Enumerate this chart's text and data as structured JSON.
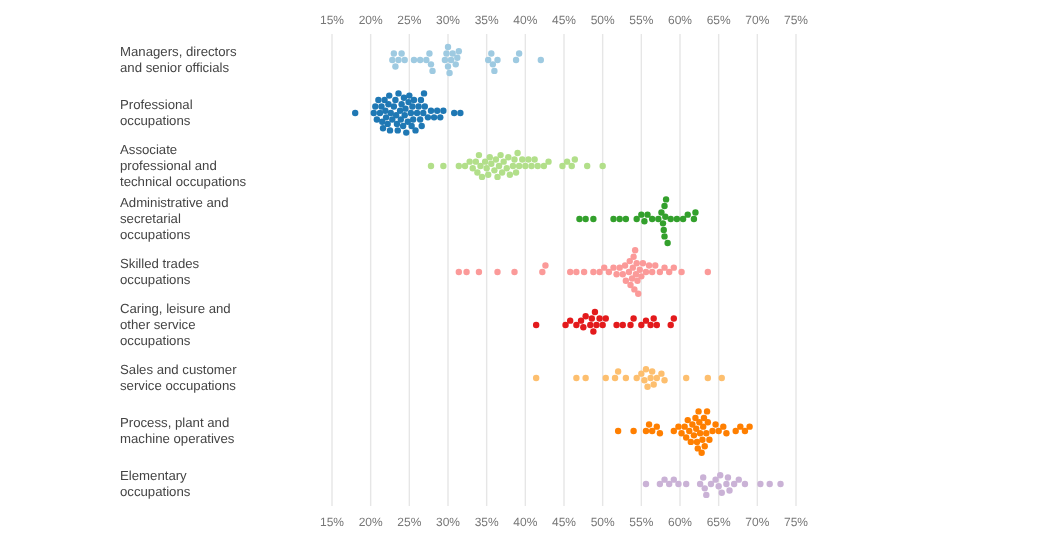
{
  "chart_data": {
    "type": "scatter",
    "orientation": "horizontal",
    "grid": "x",
    "marker": "circle",
    "categories": [
      "Managers, directors and senior officials",
      "Professional occupations",
      "Associate professional and technical occupations",
      "Administrative and secretarial occupations",
      "Skilled trades occupations",
      "Caring, leisure and other service occupations",
      "Sales and customer service occupations",
      "Process, plant and machine operatives",
      "Elementary occupations"
    ],
    "xlim": [
      15,
      75
    ],
    "xticks": [
      {
        "value": 15,
        "label": "15%"
      },
      {
        "value": 20,
        "label": "20%"
      },
      {
        "value": 25,
        "label": "25%"
      },
      {
        "value": 30,
        "label": "30%"
      },
      {
        "value": 35,
        "label": "35%"
      },
      {
        "value": 40,
        "label": "40%"
      },
      {
        "value": 45,
        "label": "45%"
      },
      {
        "value": 50,
        "label": "50%"
      },
      {
        "value": 55,
        "label": "55%"
      },
      {
        "value": 60,
        "label": "60%"
      },
      {
        "value": 65,
        "label": "65%"
      },
      {
        "value": 70,
        "label": "70%"
      },
      {
        "value": 75,
        "label": "75%"
      }
    ],
    "x2lim": [
      15,
      75
    ],
    "x2ticks": [
      {
        "value": 15,
        "label": "15%"
      },
      {
        "value": 20,
        "label": "20%"
      },
      {
        "value": 25,
        "label": "25%"
      },
      {
        "value": 30,
        "label": "30%"
      },
      {
        "value": 35,
        "label": "35%"
      },
      {
        "value": 40,
        "label": "40%"
      },
      {
        "value": 45,
        "label": "45%"
      },
      {
        "value": 50,
        "label": "50%"
      },
      {
        "value": 55,
        "label": "55%"
      },
      {
        "value": 60,
        "label": "60%"
      },
      {
        "value": 65,
        "label": "65%"
      },
      {
        "value": 70,
        "label": "70%"
      },
      {
        "value": 75,
        "label": "75%"
      }
    ],
    "series": [
      {
        "color": "#9ecae1",
        "values": [
          22.8,
          23.2,
          23.6,
          24.0,
          24.4,
          25.6,
          26.4,
          27.2,
          27.6,
          28.0,
          29.6,
          30.0,
          30.2,
          30.4,
          30.6,
          31.0,
          31.4,
          35.2,
          35.6,
          36.0,
          36.4,
          38.8,
          39.2,
          42.0,
          30.0,
          29.8,
          27.8,
          23.0,
          35.8,
          31.2
        ],
        "x": [
          "Managers, directors and senior officials",
          "Managers, directors and senior officials",
          "Managers, directors and senior officials",
          "Managers, directors and senior officials",
          "Managers, directors and senior officials",
          "Managers, directors and senior officials",
          "Managers, directors and senior officials",
          "Managers, directors and senior officials",
          "Managers, directors and senior officials",
          "Managers, directors and senior officials",
          "Managers, directors and senior officials",
          "Managers, directors and senior officials",
          "Managers, directors and senior officials",
          "Managers, directors and senior officials",
          "Managers, directors and senior officials",
          "Managers, directors and senior officials",
          "Managers, directors and senior officials",
          "Managers, directors and senior officials",
          "Managers, directors and senior officials",
          "Managers, directors and senior officials",
          "Managers, directors and senior officials",
          "Managers, directors and senior officials",
          "Managers, directors and senior officials",
          "Managers, directors and senior officials",
          "Managers, directors and senior officials",
          "Managers, directors and senior officials",
          "Managers, directors and senior officials",
          "Managers, directors and senior officials",
          "Managers, directors and senior officials",
          "Managers, directors and senior officials"
        ]
      },
      {
        "color": "#1f78b4",
        "values": [
          18.0,
          20.4,
          20.6,
          20.8,
          21.0,
          21.2,
          21.4,
          21.6,
          21.8,
          22.0,
          22.2,
          22.4,
          22.6,
          22.8,
          23.0,
          23.2,
          23.4,
          23.6,
          23.8,
          24.0,
          24.2,
          24.4,
          24.6,
          24.8,
          25.0,
          25.2,
          25.4,
          25.6,
          25.8,
          26.0,
          26.2,
          26.4,
          26.6,
          26.8,
          27.0,
          27.4,
          27.8,
          28.2,
          28.6,
          29.0,
          29.4,
          30.8,
          31.6,
          21.5,
          22.5,
          23.5,
          24.5,
          25.5,
          26.5,
          22.3,
          23.3,
          24.3,
          25.3,
          23.9,
          24.9,
          21.9,
          26.9
        ],
        "x": [
          "Professional occupations",
          "Professional occupations",
          "Professional occupations",
          "Professional occupations",
          "Professional occupations",
          "Professional occupations",
          "Professional occupations",
          "Professional occupations",
          "Professional occupations",
          "Professional occupations",
          "Professional occupations",
          "Professional occupations",
          "Professional occupations",
          "Professional occupations",
          "Professional occupations",
          "Professional occupations",
          "Professional occupations",
          "Professional occupations",
          "Professional occupations",
          "Professional occupations",
          "Professional occupations",
          "Professional occupations",
          "Professional occupations",
          "Professional occupations",
          "Professional occupations",
          "Professional occupations",
          "Professional occupations",
          "Professional occupations",
          "Professional occupations",
          "Professional occupations",
          "Professional occupations",
          "Professional occupations",
          "Professional occupations",
          "Professional occupations",
          "Professional occupations",
          "Professional occupations",
          "Professional occupations",
          "Professional occupations",
          "Professional occupations",
          "Professional occupations",
          "Professional occupations",
          "Professional occupations",
          "Professional occupations",
          "Professional occupations",
          "Professional occupations",
          "Professional occupations",
          "Professional occupations",
          "Professional occupations",
          "Professional occupations",
          "Professional occupations",
          "Professional occupations",
          "Professional occupations",
          "Professional occupations",
          "Professional occupations",
          "Professional occupations",
          "Professional occupations",
          "Professional occupations"
        ]
      },
      {
        "color": "#b2df8a",
        "values": [
          27.8,
          29.4,
          31.4,
          32.2,
          32.8,
          33.2,
          33.6,
          34.0,
          34.4,
          34.8,
          35.2,
          35.6,
          36.0,
          36.4,
          36.8,
          37.2,
          37.6,
          38.0,
          38.4,
          38.8,
          39.2,
          39.6,
          40.0,
          40.4,
          40.8,
          41.2,
          41.6,
          42.4,
          43.0,
          44.8,
          45.4,
          46.0,
          46.4,
          48.0,
          50.0,
          34.2,
          35.4,
          36.2,
          37.0,
          37.8,
          38.6,
          35.0,
          36.6,
          39.0,
          33.8
        ],
        "x": [
          "Associate professional and technical occupations",
          "Associate professional and technical occupations",
          "Associate professional and technical occupations",
          "Associate professional and technical occupations",
          "Associate professional and technical occupations",
          "Associate professional and technical occupations",
          "Associate professional and technical occupations",
          "Associate professional and technical occupations",
          "Associate professional and technical occupations",
          "Associate professional and technical occupations",
          "Associate professional and technical occupations",
          "Associate professional and technical occupations",
          "Associate professional and technical occupations",
          "Associate professional and technical occupations",
          "Associate professional and technical occupations",
          "Associate professional and technical occupations",
          "Associate professional and technical occupations",
          "Associate professional and technical occupations",
          "Associate professional and technical occupations",
          "Associate professional and technical occupations",
          "Associate professional and technical occupations",
          "Associate professional and technical occupations",
          "Associate professional and technical occupations",
          "Associate professional and technical occupations",
          "Associate professional and technical occupations",
          "Associate professional and technical occupations",
          "Associate professional and technical occupations",
          "Associate professional and technical occupations",
          "Associate professional and technical occupations",
          "Associate professional and technical occupations",
          "Associate professional and technical occupations",
          "Associate professional and technical occupations",
          "Associate professional and technical occupations",
          "Associate professional and technical occupations",
          "Associate professional and technical occupations",
          "Associate professional and technical occupations",
          "Associate professional and technical occupations",
          "Associate professional and technical occupations",
          "Associate professional and technical occupations",
          "Associate professional and technical occupations",
          "Associate professional and technical occupations",
          "Associate professional and technical occupations",
          "Associate professional and technical occupations",
          "Associate professional and technical occupations",
          "Associate professional and technical occupations"
        ]
      },
      {
        "color": "#33a02c",
        "values": [
          47.0,
          47.8,
          48.8,
          51.4,
          52.2,
          53.0,
          54.4,
          55.0,
          55.8,
          56.4,
          57.2,
          57.6,
          57.8,
          58.0,
          58.0,
          58.2,
          58.4,
          58.8,
          59.6,
          60.4,
          61.0,
          61.8,
          62.0,
          58.1,
          57.9,
          55.4
        ],
        "x": [
          "Administrative and secretarial occupations",
          "Administrative and secretarial occupations",
          "Administrative and secretarial occupations",
          "Administrative and secretarial occupations",
          "Administrative and secretarial occupations",
          "Administrative and secretarial occupations",
          "Administrative and secretarial occupations",
          "Administrative and secretarial occupations",
          "Administrative and secretarial occupations",
          "Administrative and secretarial occupations",
          "Administrative and secretarial occupations",
          "Administrative and secretarial occupations",
          "Administrative and secretarial occupations",
          "Administrative and secretarial occupations",
          "Administrative and secretarial occupations",
          "Administrative and secretarial occupations",
          "Administrative and secretarial occupations",
          "Administrative and secretarial occupations",
          "Administrative and secretarial occupations",
          "Administrative and secretarial occupations",
          "Administrative and secretarial occupations",
          "Administrative and secretarial occupations",
          "Administrative and secretarial occupations",
          "Administrative and secretarial occupations",
          "Administrative and secretarial occupations",
          "Administrative and secretarial occupations"
        ]
      },
      {
        "color": "#fb9a99",
        "values": [
          31.4,
          32.4,
          34.0,
          36.4,
          38.6,
          42.2,
          42.6,
          45.8,
          46.6,
          47.6,
          48.8,
          49.6,
          50.2,
          50.8,
          51.4,
          51.8,
          52.2,
          52.6,
          53.0,
          53.4,
          53.6,
          53.8,
          54.0,
          54.2,
          54.4,
          54.6,
          54.8,
          55.2,
          55.6,
          56.0,
          56.4,
          56.8,
          57.4,
          58.0,
          58.6,
          59.2,
          60.2,
          63.6,
          53.5,
          54.1,
          54.5,
          52.9,
          55.0,
          53.9,
          54.3
        ],
        "x": [
          "Skilled trades occupations",
          "Skilled trades occupations",
          "Skilled trades occupations",
          "Skilled trades occupations",
          "Skilled trades occupations",
          "Skilled trades occupations",
          "Skilled trades occupations",
          "Skilled trades occupations",
          "Skilled trades occupations",
          "Skilled trades occupations",
          "Skilled trades occupations",
          "Skilled trades occupations",
          "Skilled trades occupations",
          "Skilled trades occupations",
          "Skilled trades occupations",
          "Skilled trades occupations",
          "Skilled trades occupations",
          "Skilled trades occupations",
          "Skilled trades occupations",
          "Skilled trades occupations",
          "Skilled trades occupations",
          "Skilled trades occupations",
          "Skilled trades occupations",
          "Skilled trades occupations",
          "Skilled trades occupations",
          "Skilled trades occupations",
          "Skilled trades occupations",
          "Skilled trades occupations",
          "Skilled trades occupations",
          "Skilled trades occupations",
          "Skilled trades occupations",
          "Skilled trades occupations",
          "Skilled trades occupations",
          "Skilled trades occupations",
          "Skilled trades occupations",
          "Skilled trades occupations",
          "Skilled trades occupations",
          "Skilled trades occupations",
          "Skilled trades occupations",
          "Skilled trades occupations",
          "Skilled trades occupations",
          "Skilled trades occupations",
          "Skilled trades occupations",
          "Skilled trades occupations",
          "Skilled trades occupations"
        ]
      },
      {
        "color": "#e31a1c",
        "values": [
          41.4,
          45.2,
          45.8,
          46.6,
          47.2,
          47.8,
          48.4,
          48.8,
          49.2,
          49.6,
          50.0,
          50.4,
          51.8,
          52.6,
          53.6,
          54.0,
          55.0,
          55.6,
          56.2,
          56.6,
          57.0,
          58.8,
          59.2,
          48.6,
          49.0,
          47.5
        ],
        "x": [
          "Caring, leisure and other service occupations",
          "Caring, leisure and other service occupations",
          "Caring, leisure and other service occupations",
          "Caring, leisure and other service occupations",
          "Caring, leisure and other service occupations",
          "Caring, leisure and other service occupations",
          "Caring, leisure and other service occupations",
          "Caring, leisure and other service occupations",
          "Caring, leisure and other service occupations",
          "Caring, leisure and other service occupations",
          "Caring, leisure and other service occupations",
          "Caring, leisure and other service occupations",
          "Caring, leisure and other service occupations",
          "Caring, leisure and other service occupations",
          "Caring, leisure and other service occupations",
          "Caring, leisure and other service occupations",
          "Caring, leisure and other service occupations",
          "Caring, leisure and other service occupations",
          "Caring, leisure and other service occupations",
          "Caring, leisure and other service occupations",
          "Caring, leisure and other service occupations",
          "Caring, leisure and other service occupations",
          "Caring, leisure and other service occupations",
          "Caring, leisure and other service occupations",
          "Caring, leisure and other service occupations",
          "Caring, leisure and other service occupations"
        ]
      },
      {
        "color": "#fdbf6f",
        "values": [
          41.4,
          46.6,
          47.8,
          50.4,
          51.6,
          52.0,
          53.0,
          54.4,
          55.0,
          55.4,
          55.8,
          56.2,
          56.6,
          57.0,
          57.6,
          58.0,
          60.8,
          63.6,
          65.4,
          55.6,
          56.4
        ],
        "x": [
          "Sales and customer service occupations",
          "Sales and customer service occupations",
          "Sales and customer service occupations",
          "Sales and customer service occupations",
          "Sales and customer service occupations",
          "Sales and customer service occupations",
          "Sales and customer service occupations",
          "Sales and customer service occupations",
          "Sales and customer service occupations",
          "Sales and customer service occupations",
          "Sales and customer service occupations",
          "Sales and customer service occupations",
          "Sales and customer service occupations",
          "Sales and customer service occupations",
          "Sales and customer service occupations",
          "Sales and customer service occupations",
          "Sales and customer service occupations",
          "Sales and customer service occupations",
          "Sales and customer service occupations",
          "Sales and customer service occupations",
          "Sales and customer service occupations"
        ]
      },
      {
        "color": "#ff7f00",
        "values": [
          52.0,
          54.0,
          55.6,
          56.0,
          56.4,
          57.0,
          57.4,
          59.2,
          59.8,
          60.2,
          60.6,
          61.0,
          61.2,
          61.4,
          61.8,
          62.0,
          62.2,
          62.4,
          62.6,
          62.8,
          63.0,
          63.2,
          63.4,
          63.6,
          63.8,
          64.2,
          64.6,
          65.0,
          65.6,
          66.0,
          67.2,
          67.8,
          68.4,
          69.0,
          62.1,
          62.5,
          62.9,
          61.6,
          63.1,
          63.5,
          60.8,
          62.3
        ],
        "x": [
          "Process, plant and machine operatives",
          "Process, plant and machine operatives",
          "Process, plant and machine operatives",
          "Process, plant and machine operatives",
          "Process, plant and machine operatives",
          "Process, plant and machine operatives",
          "Process, plant and machine operatives",
          "Process, plant and machine operatives",
          "Process, plant and machine operatives",
          "Process, plant and machine operatives",
          "Process, plant and machine operatives",
          "Process, plant and machine operatives",
          "Process, plant and machine operatives",
          "Process, plant and machine operatives",
          "Process, plant and machine operatives",
          "Process, plant and machine operatives",
          "Process, plant and machine operatives",
          "Process, plant and machine operatives",
          "Process, plant and machine operatives",
          "Process, plant and machine operatives",
          "Process, plant and machine operatives",
          "Process, plant and machine operatives",
          "Process, plant and machine operatives",
          "Process, plant and machine operatives",
          "Process, plant and machine operatives",
          "Process, plant and machine operatives",
          "Process, plant and machine operatives",
          "Process, plant and machine operatives",
          "Process, plant and machine operatives",
          "Process, plant and machine operatives",
          "Process, plant and machine operatives",
          "Process, plant and machine operatives",
          "Process, plant and machine operatives",
          "Process, plant and machine operatives",
          "Process, plant and machine operatives",
          "Process, plant and machine operatives",
          "Process, plant and machine operatives",
          "Process, plant and machine operatives",
          "Process, plant and machine operatives",
          "Process, plant and machine operatives",
          "Process, plant and machine operatives",
          "Process, plant and machine operatives"
        ]
      },
      {
        "color": "#cab2d6",
        "values": [
          55.6,
          57.4,
          58.0,
          58.6,
          59.2,
          59.8,
          60.8,
          62.6,
          63.0,
          63.4,
          64.0,
          64.6,
          65.0,
          65.4,
          66.0,
          66.4,
          67.0,
          67.6,
          68.4,
          70.4,
          71.6,
          73.0,
          63.2,
          65.2,
          66.2
        ],
        "x": [
          "Elementary occupations",
          "Elementary occupations",
          "Elementary occupations",
          "Elementary occupations",
          "Elementary occupations",
          "Elementary occupations",
          "Elementary occupations",
          "Elementary occupations",
          "Elementary occupations",
          "Elementary occupations",
          "Elementary occupations",
          "Elementary occupations",
          "Elementary occupations",
          "Elementary occupations",
          "Elementary occupations",
          "Elementary occupations",
          "Elementary occupations",
          "Elementary occupations",
          "Elementary occupations",
          "Elementary occupations",
          "Elementary occupations",
          "Elementary occupations",
          "Elementary occupations",
          "Elementary occupations",
          "Elementary occupations"
        ]
      }
    ]
  }
}
